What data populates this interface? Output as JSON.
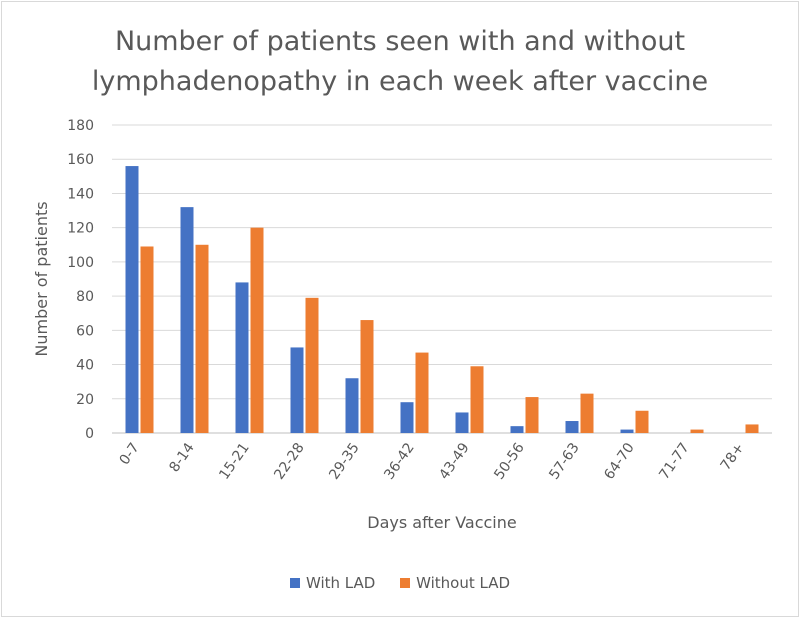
{
  "chart_data": {
    "type": "bar",
    "title_line1": "Number of patients seen with and without",
    "title_line2": "lymphadenopathy in each week after vaccine",
    "xlabel": "Days after Vaccine",
    "ylabel": "Number of patients",
    "ylim": [
      0,
      180
    ],
    "yticks": [
      0,
      20,
      40,
      60,
      80,
      100,
      120,
      140,
      160,
      180
    ],
    "grid": true,
    "legend_position": "bottom",
    "categories": [
      "0-7",
      "8-14",
      "15-21",
      "22-28",
      "29-35",
      "36-42",
      "43-49",
      "50-56",
      "57-63",
      "64-70",
      "71-77",
      "78+"
    ],
    "series": [
      {
        "name": "With LAD",
        "color": "#4472C4",
        "values": [
          156,
          132,
          88,
          50,
          32,
          18,
          12,
          4,
          7,
          2,
          0,
          0
        ]
      },
      {
        "name": "Without LAD",
        "color": "#ED7D31",
        "values": [
          109,
          110,
          120,
          79,
          66,
          47,
          39,
          21,
          23,
          13,
          2,
          5
        ]
      }
    ]
  }
}
